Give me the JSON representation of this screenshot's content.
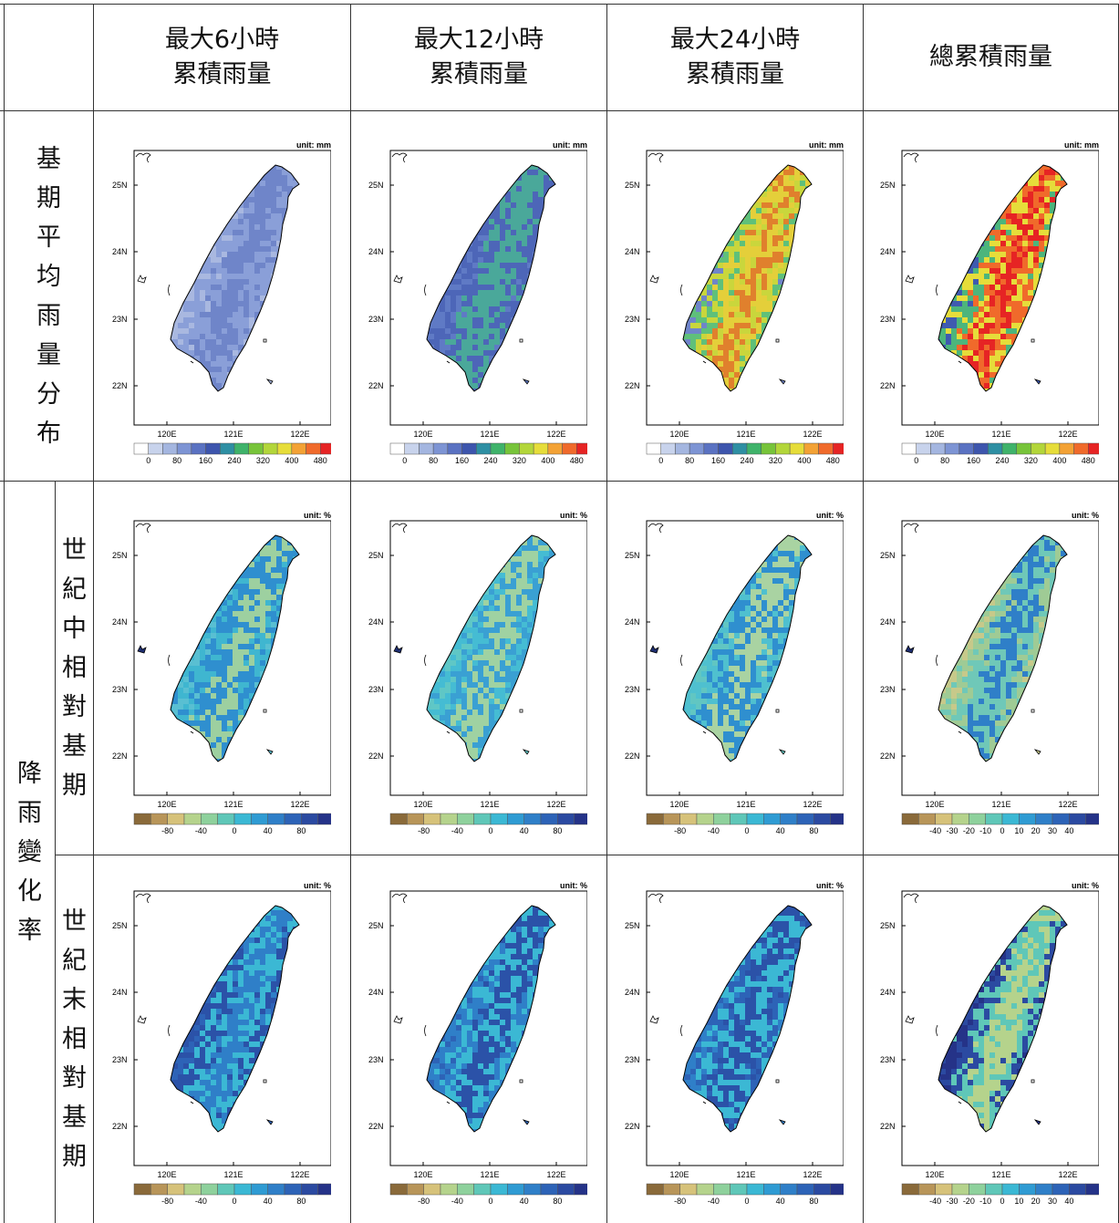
{
  "headers": {
    "col1": [
      "最大6小時",
      "累積雨量"
    ],
    "col2": [
      "最大12小時",
      "累積雨量"
    ],
    "col3": [
      "最大24小時",
      "累積雨量"
    ],
    "col4": [
      "總累積雨量"
    ]
  },
  "row_labels": {
    "base": "基期平均雨量分布",
    "change_group": "降雨變化率",
    "mid": "世紀中相對基期",
    "end": "世紀末相對基期"
  },
  "map_axes": {
    "lon_labels": [
      "120E",
      "121E",
      "122E"
    ],
    "lat_labels": [
      "25N",
      "24N",
      "23N",
      "22N"
    ]
  },
  "rows": [
    {
      "unit": "unit: mm",
      "colorbar_colors": [
        "#ffffff",
        "#c8d3ec",
        "#a4b6e0",
        "#7d94d4",
        "#5a72c2",
        "#3d55ad",
        "#2e8fa3",
        "#3fb36a",
        "#77c43a",
        "#b3d63a",
        "#e6dd3a",
        "#f3a235",
        "#f06a2b",
        "#e62424"
      ],
      "colorbar_labels": [
        "0",
        "80",
        "160",
        "240",
        "320",
        "400",
        "480"
      ]
    },
    {
      "unit": "unit: %",
      "colorbar_colors": [
        "#8a6a3a",
        "#b89559",
        "#d6c27a",
        "#b5d38c",
        "#8ed19c",
        "#5fc7b8",
        "#3bb8d4",
        "#2f9bd3",
        "#2f7fc8",
        "#2d63b7",
        "#2b4aa1",
        "#253388"
      ],
      "colorbar_labels_default": [
        "-80",
        "-40",
        "0",
        "40",
        "80"
      ],
      "colorbar_labels_total": [
        "-40",
        "-30",
        "-20",
        "-10",
        "0",
        "10",
        "20",
        "30",
        "40"
      ]
    },
    {
      "unit": "unit: %",
      "colorbar_colors": [
        "#8a6a3a",
        "#b89559",
        "#d6c27a",
        "#b5d38c",
        "#8ed19c",
        "#5fc7b8",
        "#3bb8d4",
        "#2f9bd3",
        "#2f7fc8",
        "#2d63b7",
        "#2b4aa1",
        "#253388"
      ],
      "colorbar_labels_default": [
        "-80",
        "-40",
        "0",
        "40",
        "80"
      ],
      "colorbar_labels_total": [
        "-40",
        "-30",
        "-20",
        "-10",
        "0",
        "10",
        "20",
        "30",
        "40"
      ]
    }
  ],
  "panel_palettes": [
    [
      [
        "#a9b8e0",
        "#8a9fd8",
        "#6f85c9"
      ],
      [
        "#5f7ac5",
        "#4d66b8",
        "#4aa89a"
      ],
      [
        "#6f85c9",
        "#5fc07a",
        "#c9d63c",
        "#e4cf3a",
        "#e0802d"
      ],
      [
        "#3f5ab0",
        "#4cb57c",
        "#e6dd3a",
        "#f06a2b",
        "#e62424"
      ]
    ],
    [
      [
        "#59bfd2",
        "#3fb6d0",
        "#2f8fcf",
        "#9dd0a0"
      ],
      [
        "#5fc7c6",
        "#45bcd3",
        "#3aa0d3",
        "#9fd2a2"
      ],
      [
        "#61c6c2",
        "#4fc0cf",
        "#2f8fcf",
        "#a9d3a2"
      ],
      [
        "#c7c98a",
        "#9fcb95",
        "#6fc8b8",
        "#2f7fc8"
      ]
    ],
    [
      [
        "#2d63b7",
        "#2b52a8",
        "#3bb8d4",
        "#2f7fc8"
      ],
      [
        "#2d63b7",
        "#2f7fc8",
        "#3bb8d4",
        "#2b52a8"
      ],
      [
        "#2f7fc8",
        "#2d63b7",
        "#3bb8d4",
        "#2b52a8"
      ],
      [
        "#253388",
        "#2b4aa1",
        "#5fc7b8",
        "#b5d38c"
      ]
    ]
  ]
}
